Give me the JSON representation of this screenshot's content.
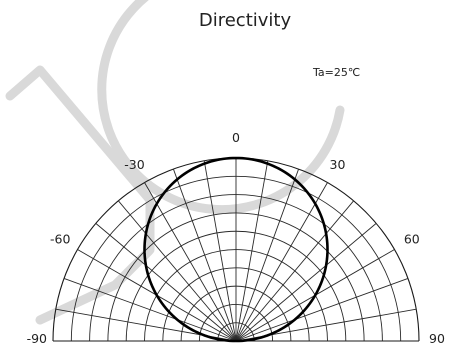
{
  "chart_data": {
    "type": "polar",
    "title": "Directivity",
    "condition": "Ta=25℃",
    "angle_unit": "deg",
    "theta_range": [
      -90,
      90
    ],
    "angle_ticks": [
      {
        "angle": 0,
        "label": "0"
      },
      {
        "angle": -30,
        "label": "-30"
      },
      {
        "angle": 30,
        "label": "30"
      },
      {
        "angle": -60,
        "label": "-60"
      },
      {
        "angle": 60,
        "label": "60"
      },
      {
        "angle": -90,
        "label": "-90"
      },
      {
        "angle": 90,
        "label": "90"
      }
    ],
    "radial_grid_fractions": [
      0.1,
      0.2,
      0.3,
      0.4,
      0.5,
      0.6,
      0.7,
      0.8,
      0.9,
      1.0
    ],
    "radial_line_step_deg": 10,
    "series": [
      {
        "values_description": "",
        "angles": [
          -90,
          -80,
          -70,
          -60,
          -50,
          -40,
          -30,
          -20,
          -10,
          0,
          10,
          20,
          30,
          40,
          50,
          60,
          70,
          80,
          90
        ],
        "relative_intensity": [
          0.0,
          0.17,
          0.34,
          0.5,
          0.64,
          0.77,
          0.87,
          0.94,
          0.98,
          1.0,
          0.98,
          0.94,
          0.87,
          0.77,
          0.64,
          0.5,
          0.34,
          0.17,
          0.0
        ]
      }
    ]
  }
}
